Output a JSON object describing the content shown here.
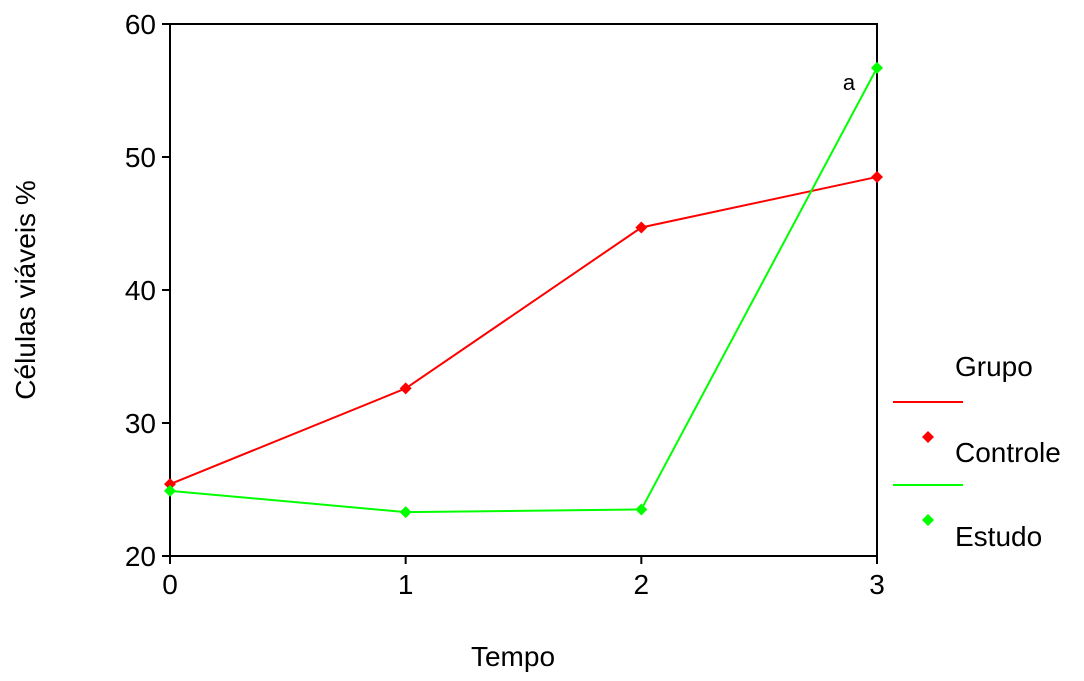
{
  "chart_data": {
    "type": "line",
    "title": "",
    "xlabel": "Tempo",
    "ylabel": "Células viáveis %",
    "x": [
      0,
      1,
      2,
      3
    ],
    "x_tick_labels": [
      "0",
      "1",
      "2",
      "3"
    ],
    "y_tick_labels": [
      "20",
      "30",
      "40",
      "50",
      "60"
    ],
    "xlim": [
      0,
      3
    ],
    "ylim": [
      20,
      60
    ],
    "grid": false,
    "legend_title": "Grupo",
    "legend_position": "right",
    "series": [
      {
        "name": "Controle",
        "color": "#ff0000",
        "values": [
          25.4,
          32.6,
          44.7,
          48.5
        ]
      },
      {
        "name": "Estudo",
        "color": "#00ff00",
        "values": [
          24.9,
          23.3,
          23.5,
          56.7
        ]
      }
    ],
    "annotations": [
      {
        "text": "a",
        "x": 3,
        "y": 56.7
      }
    ]
  }
}
